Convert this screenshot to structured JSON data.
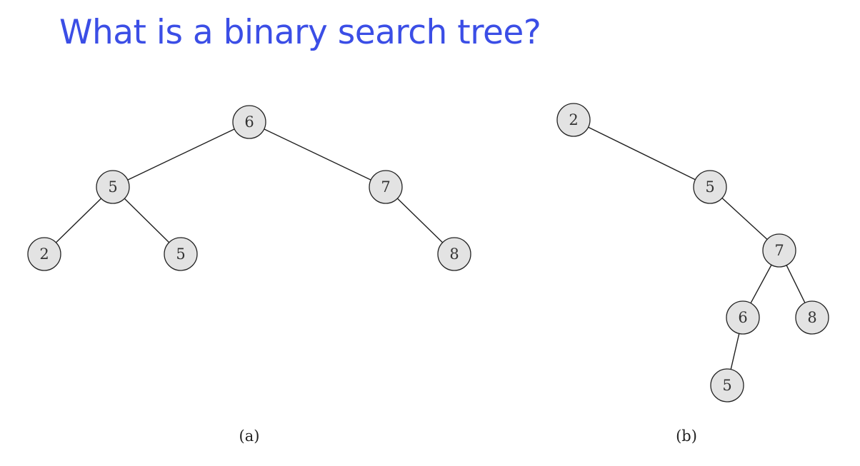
{
  "title": "What is a binary search tree?",
  "trees": [
    {
      "caption": "(a)",
      "nodes": [
        {
          "id": "a6",
          "label": "6"
        },
        {
          "id": "a5",
          "label": "5"
        },
        {
          "id": "a7",
          "label": "7"
        },
        {
          "id": "a2",
          "label": "2"
        },
        {
          "id": "a5b",
          "label": "5"
        },
        {
          "id": "a8",
          "label": "8"
        }
      ],
      "edges": [
        [
          "a6",
          "a5"
        ],
        [
          "a6",
          "a7"
        ],
        [
          "a5",
          "a2"
        ],
        [
          "a5",
          "a5b"
        ],
        [
          "a7",
          "a8"
        ]
      ]
    },
    {
      "caption": "(b)",
      "nodes": [
        {
          "id": "b2",
          "label": "2"
        },
        {
          "id": "b5",
          "label": "5"
        },
        {
          "id": "b7",
          "label": "7"
        },
        {
          "id": "b6",
          "label": "6"
        },
        {
          "id": "b8",
          "label": "8"
        },
        {
          "id": "b5b",
          "label": "5"
        }
      ],
      "edges": [
        [
          "b2",
          "b5"
        ],
        [
          "b5",
          "b7"
        ],
        [
          "b7",
          "b6"
        ],
        [
          "b7",
          "b8"
        ],
        [
          "b6",
          "b5b"
        ]
      ]
    }
  ]
}
